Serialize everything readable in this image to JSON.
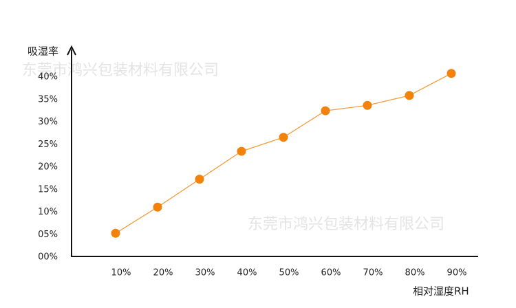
{
  "chart_data": {
    "type": "line",
    "y_label": "吸湿率",
    "x_label": "相对湿度RH",
    "watermarks": [
      "东莞市鸿兴包装材料有限公司",
      "东莞市鸿兴包装材料有限公司"
    ],
    "categories": [
      "10%",
      "20%",
      "30%",
      "40%",
      "50%",
      "60%",
      "70%",
      "80%",
      "90%"
    ],
    "series": [
      {
        "color": "#f2820a",
        "values": [
          5.3,
          11.1,
          17.3,
          23.5,
          26.6,
          32.5,
          33.7,
          35.9,
          40.8
        ]
      }
    ],
    "ylim": [
      0,
      46
    ],
    "yticks": [
      {
        "value": 0,
        "label": "00%"
      },
      {
        "value": 5,
        "label": "05%"
      },
      {
        "value": 10,
        "label": "10%"
      },
      {
        "value": 15,
        "label": "15%"
      },
      {
        "value": 20,
        "label": "20%"
      },
      {
        "value": 25,
        "label": "25%"
      },
      {
        "value": 30,
        "label": "30%"
      },
      {
        "value": 35,
        "label": "35%"
      },
      {
        "value": 40,
        "label": "40%"
      }
    ],
    "grid": false
  }
}
